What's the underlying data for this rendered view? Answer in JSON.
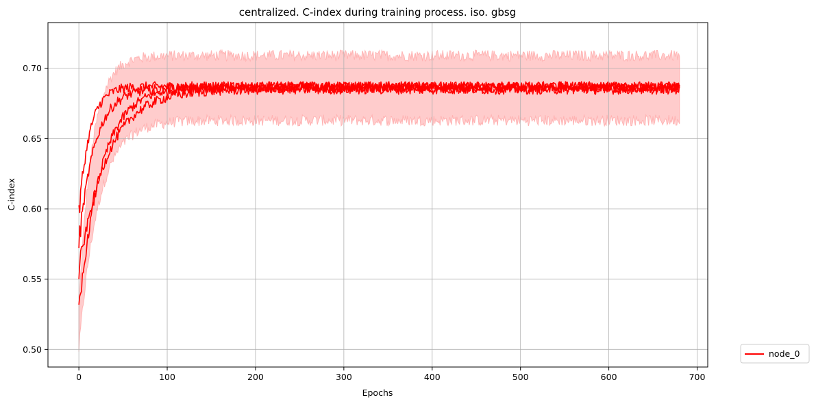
{
  "chart_data": {
    "type": "line",
    "title": "centralized. C-index during training process. iso. gbsg",
    "xlabel": "Epochs",
    "ylabel": "C-index",
    "xlim": [
      -35,
      712
    ],
    "ylim": [
      0.4875,
      0.7325
    ],
    "xticks": [
      0,
      100,
      200,
      300,
      400,
      500,
      600,
      700
    ],
    "yticks": [
      0.5,
      0.55,
      0.6,
      0.65,
      0.7
    ],
    "grid": true,
    "legend_position": "outside-bottom-right",
    "colors": {
      "line": "#ff0000",
      "band": "#ffcccc",
      "band_edge": "#ffb3b3",
      "grid": "#b0b0b0"
    },
    "series": [
      {
        "name": "node_0",
        "runs": [
          {
            "start": 0.595,
            "plateau": 0.687,
            "tau": 12,
            "epochs": 680
          },
          {
            "start": 0.575,
            "plateau": 0.686,
            "tau": 18,
            "epochs": 680
          },
          {
            "start": 0.525,
            "plateau": 0.687,
            "tau": 25,
            "epochs": 680
          },
          {
            "start": 0.555,
            "plateau": 0.685,
            "tau": 32,
            "epochs": 680
          }
        ],
        "band": {
          "upper": {
            "start": 0.53,
            "plateau": 0.709,
            "tau": 15
          },
          "lower": {
            "start": 0.5,
            "plateau": 0.663,
            "tau": 22
          }
        }
      }
    ]
  }
}
